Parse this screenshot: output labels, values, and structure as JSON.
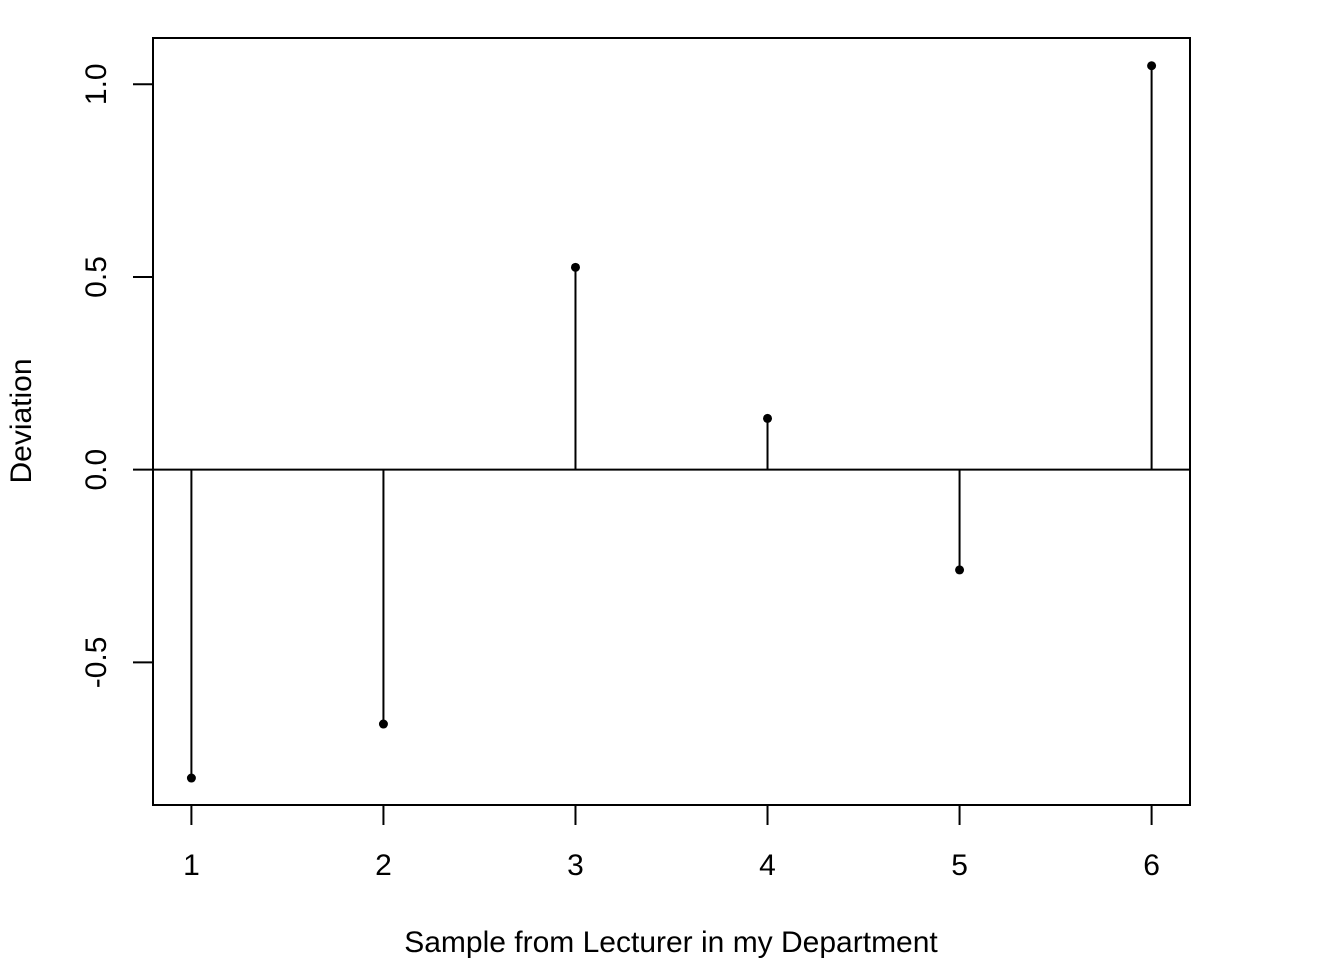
{
  "chart_data": {
    "type": "lollipop",
    "title": "",
    "xlabel": "Sample from Lecturer in my Department",
    "ylabel": "Deviation",
    "x": [
      1,
      2,
      3,
      4,
      5,
      6
    ],
    "values": [
      -0.8,
      -0.66,
      0.525,
      0.133,
      -0.26,
      1.048
    ],
    "xlim": [
      0.8,
      6.2
    ],
    "ylim": [
      -0.87,
      1.12
    ],
    "x_ticks": [
      "1",
      "2",
      "3",
      "4",
      "5",
      "6"
    ],
    "y_ticks": [
      "-0.5",
      "0.0",
      "0.5",
      "1.0"
    ],
    "y_tick_values": [
      -0.5,
      0.0,
      0.5,
      1.0
    ],
    "reference_line": 0,
    "grid": false,
    "legend": "none",
    "colors": {
      "mark": "#000000",
      "axis": "#000000",
      "background": "#ffffff"
    }
  }
}
